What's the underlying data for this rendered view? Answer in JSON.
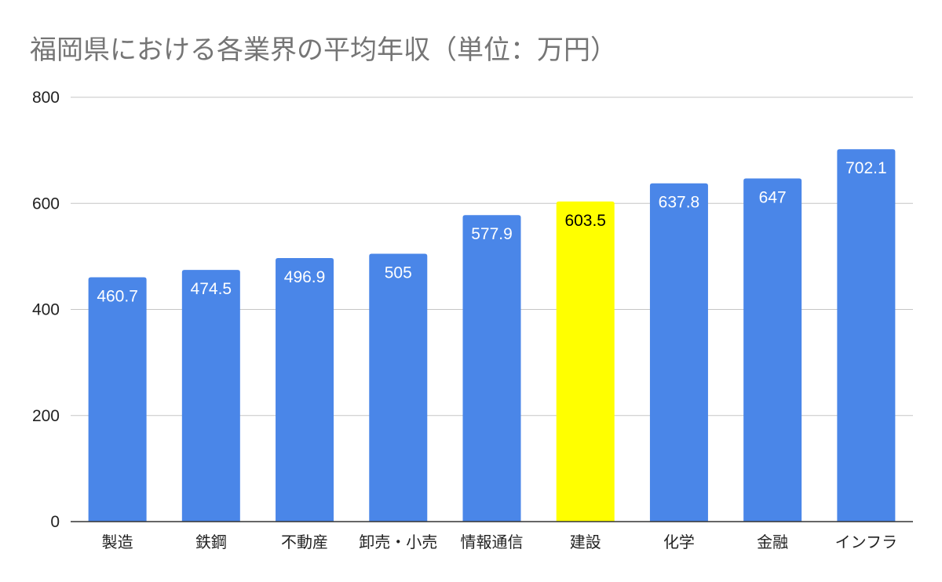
{
  "chart_data": {
    "type": "bar",
    "title": "福岡県における各業界の平均年収（単位：万円）",
    "xlabel": "",
    "ylabel": "",
    "categories": [
      "製造",
      "鉄鋼",
      "不動産",
      "卸売・小売",
      "情報通信",
      "建設",
      "化学",
      "金融",
      "インフラ"
    ],
    "values": [
      460.7,
      474.5,
      496.9,
      505,
      577.9,
      603.5,
      637.8,
      647,
      702.1
    ],
    "value_labels": [
      "460.7",
      "474.5",
      "496.9",
      "505",
      "577.9",
      "603.5",
      "637.8",
      "647",
      "702.1"
    ],
    "ylim": [
      0,
      800
    ],
    "yticks": [
      0,
      200,
      400,
      600,
      800
    ],
    "ytick_labels": [
      "0",
      "200",
      "400",
      "600",
      "800"
    ],
    "grid": true,
    "legend": "none",
    "colors": {
      "bar": "#4a86e8",
      "highlight": "#ffff00",
      "grid": "#c6c6c6",
      "label_on_bar": "#ffffff",
      "label_on_highlight": "#000000"
    },
    "highlight_index": 5
  }
}
